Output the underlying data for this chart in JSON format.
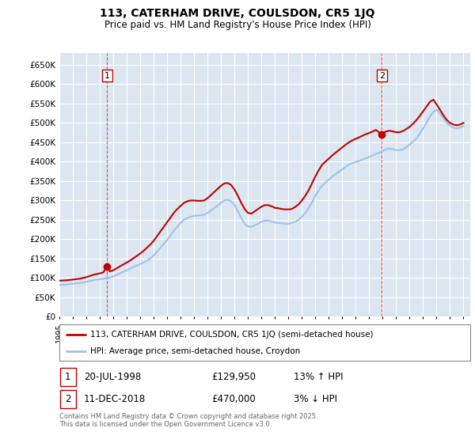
{
  "title": "113, CATERHAM DRIVE, COULSDON, CR5 1JQ",
  "subtitle": "Price paid vs. HM Land Registry's House Price Index (HPI)",
  "ylim": [
    0,
    680000
  ],
  "yticks": [
    0,
    50000,
    100000,
    150000,
    200000,
    250000,
    300000,
    350000,
    400000,
    450000,
    500000,
    550000,
    600000,
    650000
  ],
  "xlim_start": 1995.0,
  "xlim_end": 2025.5,
  "plot_bg_color": "#dce6f1",
  "grid_color": "#ffffff",
  "red_line_color": "#c00000",
  "blue_line_color": "#9dc3e6",
  "sale1_date": 1998.55,
  "sale1_price": 129950,
  "sale2_date": 2018.94,
  "sale2_price": 470000,
  "legend_red_label": "113, CATERHAM DRIVE, COULSDON, CR5 1JQ (semi-detached house)",
  "legend_blue_label": "HPI: Average price, semi-detached house, Croydon",
  "footer": "Contains HM Land Registry data © Crown copyright and database right 2025.\nThis data is licensed under the Open Government Licence v3.0.",
  "hpi_years": [
    1995,
    1995.25,
    1995.5,
    1995.75,
    1996,
    1996.25,
    1996.5,
    1996.75,
    1997,
    1997.25,
    1997.5,
    1997.75,
    1998,
    1998.25,
    1998.5,
    1998.75,
    1999,
    1999.25,
    1999.5,
    1999.75,
    2000,
    2000.25,
    2000.5,
    2000.75,
    2001,
    2001.25,
    2001.5,
    2001.75,
    2002,
    2002.25,
    2002.5,
    2002.75,
    2003,
    2003.25,
    2003.5,
    2003.75,
    2004,
    2004.25,
    2004.5,
    2004.75,
    2005,
    2005.25,
    2005.5,
    2005.75,
    2006,
    2006.25,
    2006.5,
    2006.75,
    2007,
    2007.25,
    2007.5,
    2007.75,
    2008,
    2008.25,
    2008.5,
    2008.75,
    2009,
    2009.25,
    2009.5,
    2009.75,
    2010,
    2010.25,
    2010.5,
    2010.75,
    2011,
    2011.25,
    2011.5,
    2011.75,
    2012,
    2012.25,
    2012.5,
    2012.75,
    2013,
    2013.25,
    2013.5,
    2013.75,
    2014,
    2014.25,
    2014.5,
    2014.75,
    2015,
    2015.25,
    2015.5,
    2015.75,
    2016,
    2016.25,
    2016.5,
    2016.75,
    2017,
    2017.25,
    2017.5,
    2017.75,
    2018,
    2018.25,
    2018.5,
    2018.75,
    2019,
    2019.25,
    2019.5,
    2019.75,
    2020,
    2020.25,
    2020.5,
    2020.75,
    2021,
    2021.25,
    2021.5,
    2021.75,
    2022,
    2022.25,
    2022.5,
    2022.75,
    2023,
    2023.25,
    2023.5,
    2023.75,
    2024,
    2024.25,
    2024.5,
    2024.75,
    2025
  ],
  "hpi_values": [
    82000,
    82500,
    83000,
    84000,
    85000,
    86000,
    87000,
    88000,
    90000,
    92000,
    94000,
    96000,
    97000,
    98000,
    99000,
    101000,
    104000,
    108000,
    112000,
    116000,
    120000,
    124000,
    128000,
    132000,
    136000,
    140000,
    145000,
    150000,
    158000,
    168000,
    178000,
    188000,
    198000,
    210000,
    222000,
    232000,
    242000,
    250000,
    255000,
    258000,
    260000,
    261000,
    262000,
    263000,
    268000,
    274000,
    280000,
    287000,
    294000,
    300000,
    302000,
    298000,
    288000,
    272000,
    255000,
    240000,
    233000,
    232000,
    236000,
    240000,
    245000,
    248000,
    248000,
    246000,
    243000,
    242000,
    241000,
    240000,
    240000,
    242000,
    245000,
    250000,
    258000,
    268000,
    280000,
    295000,
    312000,
    326000,
    338000,
    346000,
    354000,
    361000,
    368000,
    374000,
    380000,
    387000,
    393000,
    396000,
    399000,
    402000,
    406000,
    409000,
    412000,
    416000,
    420000,
    423000,
    428000,
    432000,
    434000,
    432000,
    430000,
    430000,
    432000,
    437000,
    444000,
    452000,
    460000,
    472000,
    486000,
    500000,
    516000,
    528000,
    534000,
    524000,
    512000,
    500000,
    493000,
    488000,
    486000,
    488000,
    492000
  ],
  "red_years": [
    1995,
    1995.25,
    1995.5,
    1995.75,
    1996,
    1996.25,
    1996.5,
    1996.75,
    1997,
    1997.25,
    1997.5,
    1997.75,
    1998,
    1998.25,
    1998.55,
    1998.75,
    1999,
    1999.25,
    1999.5,
    1999.75,
    2000,
    2000.25,
    2000.5,
    2000.75,
    2001,
    2001.25,
    2001.5,
    2001.75,
    2002,
    2002.25,
    2002.5,
    2002.75,
    2003,
    2003.25,
    2003.5,
    2003.75,
    2004,
    2004.25,
    2004.5,
    2004.75,
    2005,
    2005.25,
    2005.5,
    2005.75,
    2006,
    2006.25,
    2006.5,
    2006.75,
    2007,
    2007.25,
    2007.5,
    2007.75,
    2008,
    2008.25,
    2008.5,
    2008.75,
    2009,
    2009.25,
    2009.5,
    2009.75,
    2010,
    2010.25,
    2010.5,
    2010.75,
    2011,
    2011.25,
    2011.5,
    2011.75,
    2012,
    2012.25,
    2012.5,
    2012.75,
    2013,
    2013.25,
    2013.5,
    2013.75,
    2014,
    2014.25,
    2014.5,
    2014.75,
    2015,
    2015.25,
    2015.5,
    2015.75,
    2016,
    2016.25,
    2016.5,
    2016.75,
    2017,
    2017.25,
    2017.5,
    2017.75,
    2018,
    2018.25,
    2018.5,
    2018.94,
    2019,
    2019.25,
    2019.5,
    2019.75,
    2020,
    2020.25,
    2020.5,
    2020.75,
    2021,
    2021.25,
    2021.5,
    2021.75,
    2022,
    2022.25,
    2022.5,
    2022.75,
    2023,
    2023.25,
    2023.5,
    2023.75,
    2024,
    2024.25,
    2024.5,
    2024.75,
    2025
  ],
  "red_values": [
    93000,
    93500,
    94000,
    95000,
    96000,
    97000,
    98000,
    100000,
    102000,
    105000,
    108000,
    110000,
    112000,
    114000,
    129950,
    117000,
    120000,
    125000,
    130000,
    135000,
    140000,
    145000,
    151000,
    157000,
    163000,
    170000,
    178000,
    186000,
    196000,
    208000,
    220000,
    232000,
    244000,
    256000,
    268000,
    278000,
    286000,
    294000,
    298000,
    300000,
    300000,
    299000,
    299000,
    300000,
    306000,
    314000,
    322000,
    330000,
    338000,
    344000,
    345000,
    340000,
    328000,
    312000,
    294000,
    278000,
    268000,
    266000,
    272000,
    278000,
    284000,
    288000,
    288000,
    285000,
    281000,
    280000,
    278000,
    277000,
    277000,
    278000,
    283000,
    290000,
    300000,
    312000,
    326000,
    344000,
    362000,
    378000,
    392000,
    400000,
    408000,
    416000,
    423000,
    430000,
    437000,
    444000,
    450000,
    455000,
    459000,
    463000,
    467000,
    471000,
    474000,
    478000,
    482000,
    470000,
    474000,
    478000,
    480000,
    478000,
    476000,
    476000,
    479000,
    484000,
    490000,
    498000,
    507000,
    518000,
    530000,
    542000,
    554000,
    560000,
    548000,
    534000,
    520000,
    508000,
    500000,
    496000,
    494000,
    496000,
    500000
  ]
}
